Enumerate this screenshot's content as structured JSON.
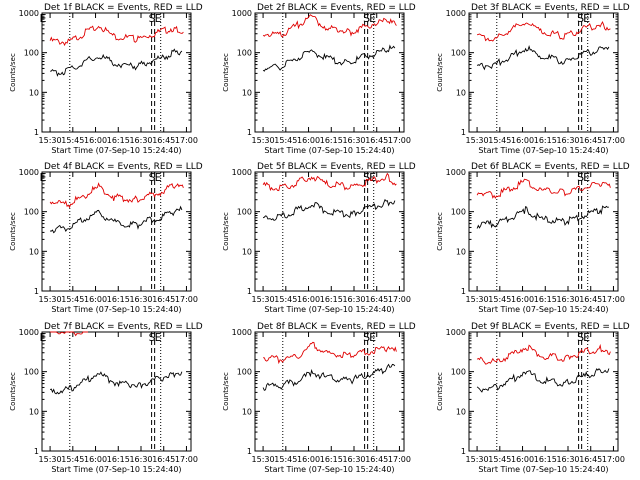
{
  "colors": {
    "events": "#000000",
    "lld": "#e00000",
    "background": "#ffffff"
  },
  "ylabel": "Counts/sec",
  "xlabel": "Start Time (07-Sep-10 15:24:40)",
  "x_ticks": [
    "15:30",
    "15:45",
    "16:00",
    "16:15",
    "16:30",
    "16:45",
    "17:00"
  ],
  "y_ticks": [
    "1",
    "10",
    "100",
    "1000"
  ],
  "chart_data": [
    {
      "type": "line",
      "title": "Det 1f BLACK = Events, RED = LLD",
      "annotations": [
        {
          "text": "E",
          "x": "15:25"
        },
        {
          "text": "S",
          "x": "16:37"
        },
        {
          "text": "E",
          "x": "16:41"
        }
      ],
      "xlim": [
        "15:24:40",
        "17:03"
      ],
      "ylim": [
        1,
        1000
      ],
      "yscale": "log",
      "markers": [
        {
          "time": "15:43",
          "style": "dotted"
        },
        {
          "time": "16:37",
          "style": "dashed"
        },
        {
          "time": "16:39",
          "style": "dashed"
        },
        {
          "time": "16:43",
          "style": "dotted"
        }
      ],
      "series": [
        {
          "name": "LLD",
          "color": "#e00000",
          "x": [
            "15:30",
            "15:42",
            "15:55",
            "16:02",
            "16:12",
            "16:28",
            "16:35",
            "16:42",
            "16:52",
            "16:58"
          ],
          "values": [
            200,
            180,
            350,
            480,
            260,
            220,
            270,
            330,
            420,
            330
          ]
        },
        {
          "name": "Events",
          "color": "#000000",
          "x": [
            "15:30",
            "15:42",
            "15:55",
            "16:02",
            "16:12",
            "16:28",
            "16:35",
            "16:42",
            "16:52",
            "16:57"
          ],
          "values": [
            30,
            35,
            65,
            85,
            55,
            45,
            60,
            70,
            100,
            110
          ]
        }
      ]
    },
    {
      "type": "line",
      "title": "Det 2f BLACK = Events, RED = LLD",
      "annotations": [
        {
          "text": "S",
          "x": "16:38"
        },
        {
          "text": "E",
          "x": "16:42"
        }
      ],
      "xlim": [
        "15:24:40",
        "17:03"
      ],
      "ylim": [
        1,
        1000
      ],
      "yscale": "log",
      "markers": [
        {
          "time": "15:43",
          "style": "dotted"
        },
        {
          "time": "16:37",
          "style": "dashed"
        },
        {
          "time": "16:39",
          "style": "dashed"
        },
        {
          "time": "16:43",
          "style": "dotted"
        }
      ],
      "series": [
        {
          "name": "LLD",
          "color": "#e00000",
          "x": [
            "15:30",
            "15:42",
            "15:55",
            "16:02",
            "16:12",
            "16:28",
            "16:35",
            "16:42",
            "16:52",
            "16:58"
          ],
          "values": [
            320,
            280,
            560,
            780,
            420,
            330,
            420,
            520,
            640,
            480
          ]
        },
        {
          "name": "Events",
          "color": "#000000",
          "x": [
            "15:30",
            "15:42",
            "15:55",
            "16:02",
            "16:12",
            "16:28",
            "16:35",
            "16:42",
            "16:52",
            "16:57"
          ],
          "values": [
            40,
            45,
            80,
            110,
            70,
            55,
            75,
            90,
            120,
            130
          ]
        }
      ]
    },
    {
      "type": "line",
      "title": "Det 3f BLACK = Events, RED = LLD",
      "annotations": [
        {
          "text": "S",
          "x": "16:38"
        },
        {
          "text": "E",
          "x": "16:42"
        }
      ],
      "xlim": [
        "15:24:40",
        "17:03"
      ],
      "ylim": [
        1,
        1000
      ],
      "yscale": "log",
      "markers": [
        {
          "time": "15:43",
          "style": "dotted"
        },
        {
          "time": "16:37",
          "style": "dashed"
        },
        {
          "time": "16:39",
          "style": "dashed"
        },
        {
          "time": "16:43",
          "style": "dotted"
        }
      ],
      "series": [
        {
          "name": "LLD",
          "color": "#e00000",
          "x": [
            "15:30",
            "15:42",
            "15:55",
            "16:02",
            "16:12",
            "16:28",
            "16:35",
            "16:42",
            "16:52",
            "16:58"
          ],
          "values": [
            250,
            220,
            430,
            600,
            330,
            260,
            330,
            420,
            520,
            400
          ]
        },
        {
          "name": "Events",
          "color": "#000000",
          "x": [
            "15:30",
            "15:42",
            "15:55",
            "16:02",
            "16:12",
            "16:28",
            "16:35",
            "16:42",
            "16:52",
            "16:57"
          ],
          "values": [
            45,
            50,
            90,
            130,
            80,
            60,
            80,
            95,
            130,
            140
          ]
        }
      ]
    },
    {
      "type": "line",
      "title": "Det 4f BLACK = Events, RED = LLD",
      "annotations": [
        {
          "text": "E",
          "x": "15:25"
        },
        {
          "text": "S",
          "x": "16:37"
        },
        {
          "text": "E",
          "x": "16:41"
        }
      ],
      "xlim": [
        "15:24:40",
        "17:03"
      ],
      "ylim": [
        1,
        1000
      ],
      "yscale": "log",
      "markers": [
        {
          "time": "15:43",
          "style": "dotted"
        },
        {
          "time": "16:37",
          "style": "dashed"
        },
        {
          "time": "16:39",
          "style": "dashed"
        },
        {
          "time": "16:43",
          "style": "dotted"
        }
      ],
      "series": [
        {
          "name": "LLD",
          "color": "#e00000",
          "x": [
            "15:30",
            "15:42",
            "15:55",
            "16:02",
            "16:12",
            "16:28",
            "16:35",
            "16:42",
            "16:52",
            "16:58"
          ],
          "values": [
            180,
            150,
            290,
            420,
            230,
            200,
            260,
            300,
            450,
            400
          ]
        },
        {
          "name": "Events",
          "color": "#000000",
          "x": [
            "15:30",
            "15:42",
            "15:55",
            "16:02",
            "16:12",
            "16:28",
            "16:35",
            "16:42",
            "16:52",
            "16:57"
          ],
          "values": [
            35,
            40,
            70,
            90,
            55,
            45,
            60,
            70,
            100,
            110
          ]
        }
      ]
    },
    {
      "type": "line",
      "title": "Det 5f BLACK = Events, RED = LLD",
      "annotations": [
        {
          "text": "S",
          "x": "16:38"
        },
        {
          "text": "E",
          "x": "16:42"
        }
      ],
      "xlim": [
        "15:24:40",
        "17:03"
      ],
      "ylim": [
        1,
        1000
      ],
      "yscale": "log",
      "markers": [
        {
          "time": "15:43",
          "style": "dotted"
        },
        {
          "time": "16:37",
          "style": "dashed"
        },
        {
          "time": "16:39",
          "style": "dashed"
        },
        {
          "time": "16:43",
          "style": "dotted"
        }
      ],
      "series": [
        {
          "name": "LLD",
          "color": "#e00000",
          "x": [
            "15:30",
            "15:42",
            "15:55",
            "16:02",
            "16:12",
            "16:28",
            "16:35",
            "16:42",
            "16:52",
            "16:58"
          ],
          "values": [
            450,
            380,
            600,
            800,
            500,
            420,
            500,
            600,
            780,
            500
          ]
        },
        {
          "name": "Events",
          "color": "#000000",
          "x": [
            "15:30",
            "15:42",
            "15:55",
            "16:02",
            "16:12",
            "16:28",
            "16:35",
            "16:42",
            "16:52",
            "16:57"
          ],
          "values": [
            70,
            75,
            120,
            160,
            100,
            85,
            110,
            130,
            170,
            190
          ]
        }
      ]
    },
    {
      "type": "line",
      "title": "Det 6f BLACK = Events, RED = LLD",
      "annotations": [
        {
          "text": "S",
          "x": "16:38"
        },
        {
          "text": "E",
          "x": "16:42"
        }
      ],
      "xlim": [
        "15:24:40",
        "17:03"
      ],
      "ylim": [
        1,
        1000
      ],
      "yscale": "log",
      "markers": [
        {
          "time": "15:43",
          "style": "dotted"
        },
        {
          "time": "16:37",
          "style": "dashed"
        },
        {
          "time": "16:39",
          "style": "dashed"
        },
        {
          "time": "16:43",
          "style": "dotted"
        }
      ],
      "series": [
        {
          "name": "LLD",
          "color": "#e00000",
          "x": [
            "15:30",
            "15:42",
            "15:55",
            "16:02",
            "16:12",
            "16:28",
            "16:35",
            "16:42",
            "16:52",
            "16:58"
          ],
          "values": [
            300,
            260,
            420,
            580,
            350,
            300,
            360,
            420,
            480,
            400
          ]
        },
        {
          "name": "Events",
          "color": "#000000",
          "x": [
            "15:30",
            "15:42",
            "15:55",
            "16:02",
            "16:12",
            "16:28",
            "16:35",
            "16:42",
            "16:52",
            "16:57"
          ],
          "values": [
            45,
            50,
            80,
            110,
            65,
            55,
            70,
            85,
            110,
            130
          ]
        }
      ]
    },
    {
      "type": "line",
      "title": "Det 7f BLACK = Events, RED = LLD",
      "annotations": [
        {
          "text": "E",
          "x": "15:25"
        },
        {
          "text": "S",
          "x": "16:37"
        },
        {
          "text": "E",
          "x": "16:41"
        }
      ],
      "xlim": [
        "15:24:40",
        "17:03"
      ],
      "ylim": [
        1,
        1000
      ],
      "yscale": "log",
      "markers": [
        {
          "time": "15:43",
          "style": "dotted"
        },
        {
          "time": "16:37",
          "style": "dashed"
        },
        {
          "time": "16:39",
          "style": "dashed"
        },
        {
          "time": "16:43",
          "style": "dotted"
        }
      ],
      "series": [
        {
          "name": "LLD",
          "color": "#e00000",
          "x": [
            "15:30",
            "15:42",
            "15:55"
          ],
          "values": [
            1000,
            1000,
            1000
          ]
        },
        {
          "name": "Events",
          "color": "#000000",
          "x": [
            "15:30",
            "15:42",
            "15:55",
            "16:02",
            "16:12",
            "16:28",
            "16:35",
            "16:42",
            "16:52",
            "16:57"
          ],
          "values": [
            30,
            35,
            65,
            90,
            55,
            45,
            55,
            65,
            90,
            100
          ]
        }
      ]
    },
    {
      "type": "line",
      "title": "Det 8f BLACK = Events, RED = LLD",
      "annotations": [
        {
          "text": "S",
          "x": "16:38"
        },
        {
          "text": "E",
          "x": "16:42"
        }
      ],
      "xlim": [
        "15:24:40",
        "17:03"
      ],
      "ylim": [
        1,
        1000
      ],
      "yscale": "log",
      "markers": [
        {
          "time": "15:43",
          "style": "dotted"
        },
        {
          "time": "16:37",
          "style": "dashed"
        },
        {
          "time": "16:39",
          "style": "dashed"
        },
        {
          "time": "16:43",
          "style": "dotted"
        }
      ],
      "series": [
        {
          "name": "LLD",
          "color": "#e00000",
          "x": [
            "15:30",
            "15:42",
            "15:55",
            "16:02",
            "16:12",
            "16:28",
            "16:35",
            "16:42",
            "16:52",
            "16:58"
          ],
          "values": [
            230,
            200,
            260,
            480,
            290,
            250,
            300,
            330,
            380,
            320
          ]
        },
        {
          "name": "Events",
          "color": "#000000",
          "x": [
            "15:30",
            "15:42",
            "15:55",
            "16:02",
            "16:12",
            "16:28",
            "16:35",
            "16:42",
            "16:52",
            "16:57"
          ],
          "values": [
            40,
            45,
            60,
            100,
            70,
            60,
            75,
            90,
            120,
            140
          ]
        }
      ]
    },
    {
      "type": "line",
      "title": "Det 9f BLACK = Events, RED = LLD",
      "annotations": [
        {
          "text": "S",
          "x": "16:38"
        },
        {
          "text": "E",
          "x": "16:42"
        }
      ],
      "xlim": [
        "15:24:40",
        "17:03"
      ],
      "ylim": [
        1,
        1000
      ],
      "yscale": "log",
      "markers": [
        {
          "time": "15:43",
          "style": "dotted"
        },
        {
          "time": "16:37",
          "style": "dashed"
        },
        {
          "time": "16:39",
          "style": "dashed"
        },
        {
          "time": "16:43",
          "style": "dotted"
        }
      ],
      "series": [
        {
          "name": "LLD",
          "color": "#e00000",
          "x": [
            "15:30",
            "15:42",
            "15:55",
            "16:02",
            "16:12",
            "16:28",
            "16:35",
            "16:42",
            "16:52",
            "16:58"
          ],
          "values": [
            200,
            170,
            300,
            430,
            250,
            220,
            270,
            320,
            380,
            320
          ]
        },
        {
          "name": "Events",
          "color": "#000000",
          "x": [
            "15:30",
            "15:42",
            "15:55",
            "16:02",
            "16:12",
            "16:28",
            "16:35",
            "16:42",
            "16:52",
            "16:57"
          ],
          "values": [
            35,
            40,
            70,
            100,
            60,
            50,
            65,
            80,
            105,
            120
          ]
        }
      ]
    }
  ]
}
